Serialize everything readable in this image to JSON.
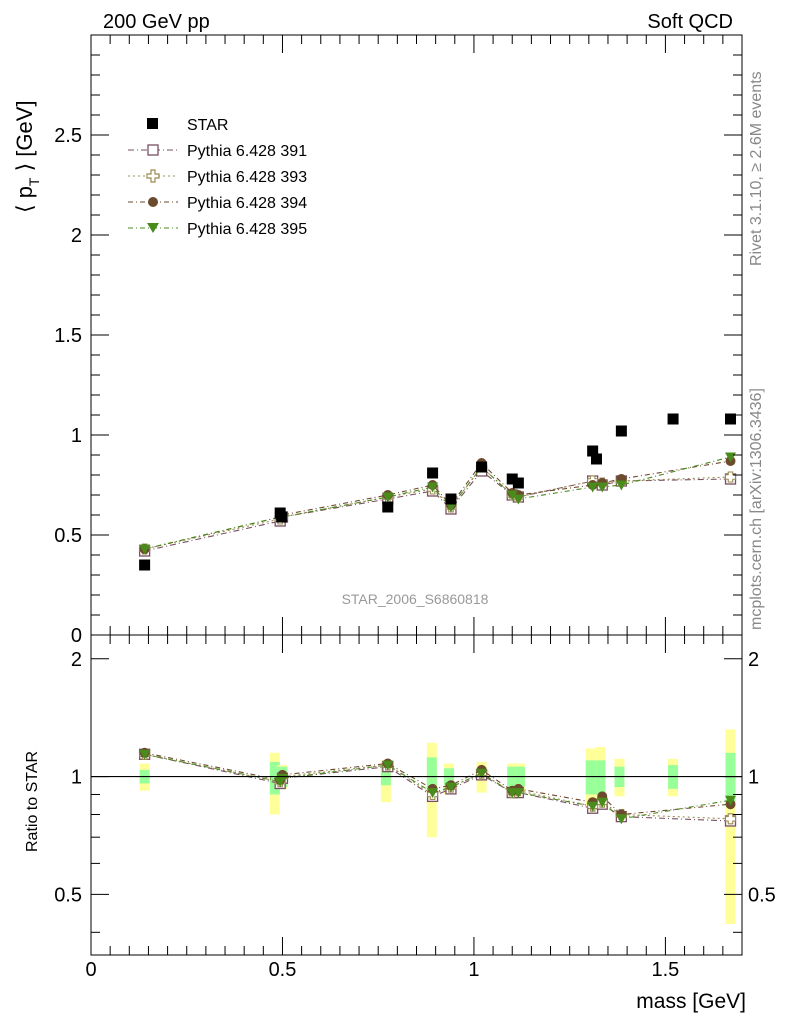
{
  "header": {
    "left": "200 GeV pp",
    "right": "Soft QCD"
  },
  "side_labels": {
    "rivet": "Rivet 3.1.10, ≥ 2.6M events",
    "mcplots": "mcplots.cern.ch [arXiv:1306.3436]"
  },
  "analysis_id": "STAR_2006_S6860818",
  "chart_data": [
    {
      "type": "scatter",
      "panel": "main",
      "ylabel_main": "⟨ p",
      "ylabel_sub": "T",
      "ylabel_tail": " ⟩ [GeV]",
      "xlim": [
        0,
        1.7
      ],
      "ylim": [
        0,
        3.0
      ],
      "x_ticks": [
        0,
        0.5,
        1,
        1.5
      ],
      "x_tick_labels": [
        "0",
        "0.5",
        "1",
        "1.5"
      ],
      "y_ticks": [
        0,
        0.5,
        1,
        1.5,
        2,
        2.5
      ],
      "y_tick_labels": [
        "0",
        "0.5",
        "1",
        "1.5",
        "2",
        "2.5"
      ],
      "legend_position": "top-left",
      "reference": {
        "name": "STAR",
        "color": "#000000",
        "x": [
          0.14,
          0.494,
          0.498,
          0.775,
          0.892,
          0.94,
          1.02,
          1.1,
          1.116,
          1.31,
          1.32,
          1.385,
          1.52,
          1.67
        ],
        "y": [
          0.35,
          0.61,
          0.59,
          0.64,
          0.81,
          0.68,
          0.84,
          0.78,
          0.76,
          0.92,
          0.88,
          1.02,
          1.08,
          1.08
        ]
      },
      "series": [
        {
          "name": "Pythia 6.428 391",
          "color": "#7a4f63",
          "marker": "open-square",
          "x": [
            0.14,
            0.494,
            0.5,
            0.775,
            0.892,
            0.94,
            1.02,
            1.1,
            1.116,
            1.31,
            1.335,
            1.385,
            1.67
          ],
          "y": [
            0.42,
            0.57,
            0.59,
            0.68,
            0.72,
            0.63,
            0.82,
            0.7,
            0.69,
            0.77,
            0.75,
            0.77,
            0.78
          ]
        },
        {
          "name": "Pythia 6.428 393",
          "color": "#9b8b52",
          "marker": "open-cross",
          "x": [
            0.14,
            0.494,
            0.5,
            0.775,
            0.892,
            0.94,
            1.02,
            1.1,
            1.116,
            1.31,
            1.335,
            1.385,
            1.67
          ],
          "y": [
            0.43,
            0.58,
            0.59,
            0.69,
            0.73,
            0.64,
            0.84,
            0.7,
            0.69,
            0.77,
            0.76,
            0.77,
            0.79
          ]
        },
        {
          "name": "Pythia 6.428 394",
          "color": "#6b4a2e",
          "marker": "filled-circle",
          "x": [
            0.14,
            0.494,
            0.5,
            0.775,
            0.892,
            0.94,
            1.02,
            1.1,
            1.116,
            1.31,
            1.335,
            1.385,
            1.67
          ],
          "y": [
            0.43,
            0.59,
            0.6,
            0.7,
            0.75,
            0.65,
            0.86,
            0.71,
            0.7,
            0.75,
            0.76,
            0.78,
            0.87
          ]
        },
        {
          "name": "Pythia 6.428 395",
          "color": "#4a8c1c",
          "marker": "filled-triangle-down",
          "x": [
            0.14,
            0.494,
            0.5,
            0.775,
            0.892,
            0.94,
            1.02,
            1.1,
            1.116,
            1.31,
            1.335,
            1.385,
            1.67
          ],
          "y": [
            0.43,
            0.59,
            0.59,
            0.69,
            0.74,
            0.64,
            0.84,
            0.7,
            0.68,
            0.74,
            0.74,
            0.75,
            0.89
          ]
        }
      ]
    },
    {
      "type": "scatter",
      "panel": "ratio",
      "ylabel": "Ratio to STAR",
      "xlabel": "mass [GeV]",
      "xlim": [
        0,
        1.7
      ],
      "ylim": [
        0.35,
        2.3
      ],
      "y_ticks": [
        0.5,
        1,
        2
      ],
      "y_tick_labels": [
        "0.5",
        "1",
        "2"
      ],
      "bands": {
        "x": [
          0.14,
          0.48,
          0.5,
          0.77,
          0.89,
          0.935,
          1.02,
          1.1,
          1.12,
          1.305,
          1.33,
          1.38,
          1.52,
          1.67
        ],
        "inner": [
          [
            0.96,
            1.04
          ],
          [
            0.9,
            1.09
          ],
          [
            0.94,
            1.06
          ],
          [
            0.95,
            1.06
          ],
          [
            0.92,
            1.12
          ],
          [
            0.95,
            1.05
          ],
          [
            0.98,
            1.04
          ],
          [
            0.94,
            1.06
          ],
          [
            0.94,
            1.06
          ],
          [
            0.9,
            1.1
          ],
          [
            0.9,
            1.1
          ],
          [
            0.94,
            1.06
          ],
          [
            0.93,
            1.07
          ],
          [
            0.85,
            1.15
          ]
        ],
        "outer": [
          [
            0.92,
            1.08
          ],
          [
            0.8,
            1.15
          ],
          [
            0.93,
            1.07
          ],
          [
            0.86,
            1.1
          ],
          [
            0.7,
            1.22
          ],
          [
            0.9,
            1.08
          ],
          [
            0.91,
            1.09
          ],
          [
            0.91,
            1.08
          ],
          [
            0.91,
            1.08
          ],
          [
            0.84,
            1.18
          ],
          [
            0.83,
            1.19
          ],
          [
            0.89,
            1.11
          ],
          [
            0.89,
            1.11
          ],
          [
            0.42,
            1.32
          ]
        ],
        "inner_color": "#99ff99",
        "outer_color": "#ffff99"
      },
      "series": [
        {
          "name": "Pythia 6.428 391",
          "x": [
            0.14,
            0.494,
            0.5,
            0.775,
            0.892,
            0.94,
            1.02,
            1.1,
            1.116,
            1.31,
            1.335,
            1.385,
            1.67
          ],
          "y": [
            1.14,
            0.96,
            0.99,
            1.06,
            0.89,
            0.93,
            1.01,
            0.91,
            0.91,
            0.83,
            0.85,
            0.79,
            0.77
          ]
        },
        {
          "name": "Pythia 6.428 393",
          "x": [
            0.14,
            0.494,
            0.5,
            0.775,
            0.892,
            0.94,
            1.02,
            1.1,
            1.116,
            1.31,
            1.335,
            1.385,
            1.67
          ],
          "y": [
            1.14,
            0.97,
            1.0,
            1.07,
            0.9,
            0.94,
            1.02,
            0.91,
            0.92,
            0.84,
            0.86,
            0.8,
            0.78
          ]
        },
        {
          "name": "Pythia 6.428 394",
          "x": [
            0.14,
            0.494,
            0.5,
            0.775,
            0.892,
            0.94,
            1.02,
            1.1,
            1.116,
            1.31,
            1.335,
            1.385,
            1.67
          ],
          "y": [
            1.15,
            0.98,
            1.01,
            1.08,
            0.93,
            0.95,
            1.04,
            0.92,
            0.93,
            0.86,
            0.89,
            0.8,
            0.85
          ]
        },
        {
          "name": "Pythia 6.428 395",
          "x": [
            0.14,
            0.494,
            0.5,
            0.775,
            0.892,
            0.94,
            1.02,
            1.1,
            1.116,
            1.31,
            1.335,
            1.385,
            1.67
          ],
          "y": [
            1.14,
            0.97,
            0.99,
            1.07,
            0.91,
            0.94,
            1.02,
            0.91,
            0.91,
            0.84,
            0.86,
            0.78,
            0.87
          ]
        }
      ]
    }
  ]
}
